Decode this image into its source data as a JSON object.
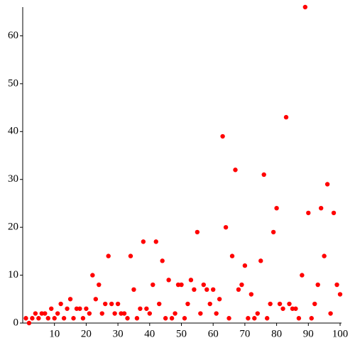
{
  "chart_data": {
    "type": "scatter",
    "x": [
      1,
      2,
      3,
      4,
      5,
      6,
      7,
      8,
      9,
      10,
      11,
      12,
      13,
      14,
      15,
      16,
      17,
      18,
      19,
      20,
      21,
      22,
      23,
      24,
      25,
      26,
      27,
      28,
      29,
      30,
      31,
      32,
      33,
      34,
      35,
      36,
      37,
      38,
      39,
      40,
      41,
      42,
      43,
      44,
      45,
      46,
      47,
      48,
      49,
      50,
      51,
      52,
      53,
      54,
      55,
      56,
      57,
      58,
      59,
      60,
      61,
      62,
      63,
      64,
      65,
      66,
      67,
      68,
      69,
      70,
      71,
      72,
      73,
      74,
      75,
      76,
      77,
      78,
      79,
      80,
      81,
      82,
      83,
      84,
      85,
      86,
      87,
      88,
      89,
      90,
      91,
      92,
      93,
      94,
      95,
      96,
      97,
      98,
      99,
      100
    ],
    "series": [
      {
        "color": "#ff0000",
        "values": [
          1,
          0,
          1,
          2,
          1,
          2,
          2,
          1,
          3,
          1,
          2,
          4,
          1,
          3,
          5,
          1,
          3,
          3,
          1,
          3,
          2,
          10,
          5,
          8,
          2,
          4,
          14,
          4,
          2,
          4,
          2,
          2,
          1,
          14,
          7,
          1,
          3,
          17,
          3,
          2,
          8,
          17,
          4,
          13,
          1,
          9,
          1,
          2,
          8,
          8,
          1,
          4,
          9,
          7,
          19,
          2,
          8,
          7,
          4,
          7,
          2,
          5,
          39,
          20,
          1,
          14,
          32,
          7,
          8,
          12,
          1,
          6,
          1,
          2,
          13,
          31,
          1,
          4,
          19,
          24,
          4,
          3,
          43,
          4,
          3,
          3,
          1,
          10,
          66,
          23,
          1,
          4,
          8,
          24,
          14,
          29,
          2,
          23,
          8,
          6
        ]
      }
    ],
    "xlim": [
      0,
      100
    ],
    "ylim": [
      0,
      66
    ],
    "xticks": [
      10,
      20,
      30,
      40,
      50,
      60,
      70,
      80,
      90,
      100
    ],
    "yticks": [
      0,
      10,
      20,
      30,
      40,
      50,
      60
    ]
  }
}
